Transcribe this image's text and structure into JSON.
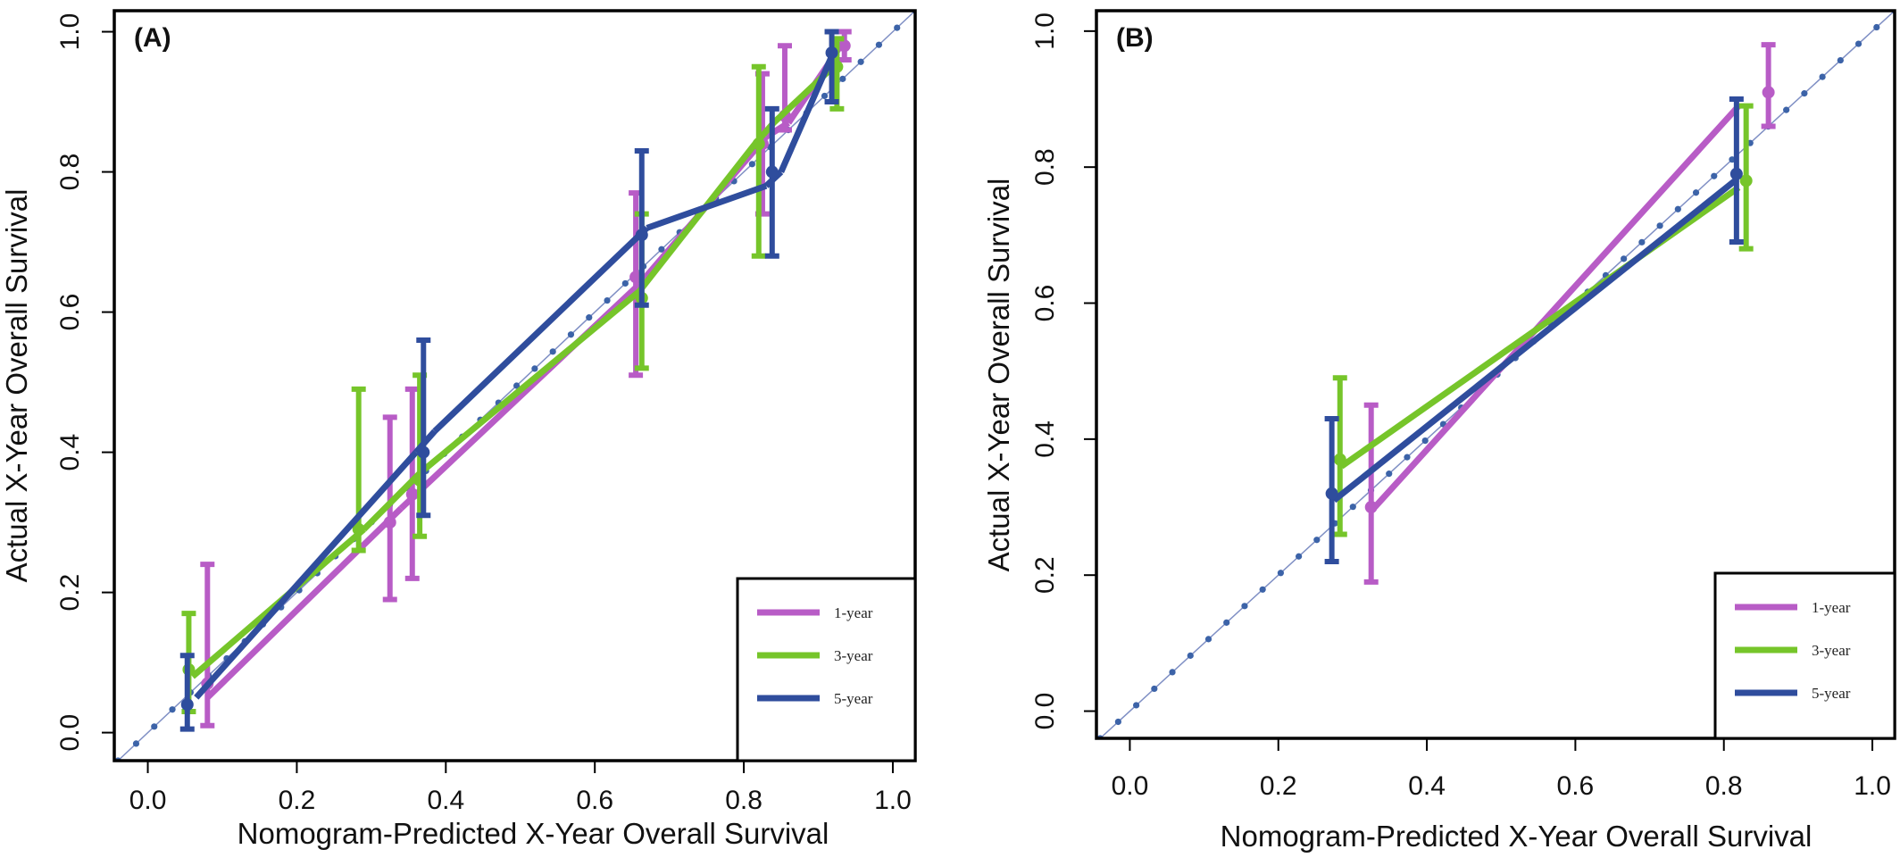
{
  "chart_data": [
    {
      "type": "line",
      "panel_label": "(A)",
      "xlabel": "Nomogram-Predicted X-Year Overall Survival",
      "ylabel": "Actual X-Year Overall Survival",
      "xlim": [
        -0.045,
        1.03
      ],
      "ylim": [
        -0.04,
        1.03
      ],
      "xticks": [
        "0.0",
        "0.2",
        "0.4",
        "0.6",
        "0.8",
        "1.0"
      ],
      "yticks": [
        "0.0",
        "0.2",
        "0.4",
        "0.6",
        "0.8",
        "1.0"
      ],
      "legend_position": "bottom-right",
      "reference_line": true,
      "series": [
        {
          "name": "1-year",
          "color": "#b85cc6",
          "line": [
            [
              0.08,
              0.05
            ],
            [
              0.34,
              0.32
            ],
            [
              0.36,
              0.34
            ],
            [
              0.66,
              0.64
            ],
            [
              0.83,
              0.85
            ],
            [
              0.86,
              0.87
            ],
            [
              0.93,
              0.98
            ]
          ],
          "points": [
            {
              "x": 0.08,
              "y": 0.07,
              "lo": 0.01,
              "hi": 0.24
            },
            {
              "x": 0.325,
              "y": 0.3,
              "lo": 0.19,
              "hi": 0.45
            },
            {
              "x": 0.355,
              "y": 0.34,
              "lo": 0.22,
              "hi": 0.49
            },
            {
              "x": 0.655,
              "y": 0.65,
              "lo": 0.51,
              "hi": 0.77
            },
            {
              "x": 0.825,
              "y": 0.84,
              "lo": 0.74,
              "hi": 0.94
            },
            {
              "x": 0.855,
              "y": 0.88,
              "lo": 0.86,
              "hi": 0.98
            },
            {
              "x": 0.935,
              "y": 0.98,
              "lo": 0.96,
              "hi": 1.0
            }
          ]
        },
        {
          "name": "3-year",
          "color": "#76c52a",
          "line": [
            [
              0.06,
              0.08
            ],
            [
              0.29,
              0.29
            ],
            [
              0.365,
              0.37
            ],
            [
              0.66,
              0.63
            ],
            [
              0.815,
              0.84
            ],
            [
              0.84,
              0.87
            ],
            [
              0.92,
              0.95
            ]
          ],
          "points": [
            {
              "x": 0.055,
              "y": 0.09,
              "lo": 0.03,
              "hi": 0.17
            },
            {
              "x": 0.283,
              "y": 0.29,
              "lo": 0.26,
              "hi": 0.49
            },
            {
              "x": 0.365,
              "y": 0.36,
              "lo": 0.28,
              "hi": 0.51
            },
            {
              "x": 0.663,
              "y": 0.62,
              "lo": 0.52,
              "hi": 0.74
            },
            {
              "x": 0.82,
              "y": 0.84,
              "lo": 0.68,
              "hi": 0.95
            },
            {
              "x": 0.925,
              "y": 0.95,
              "lo": 0.89,
              "hi": 0.99
            }
          ]
        },
        {
          "name": "5-year",
          "color": "#2f4d9d",
          "line": [
            [
              0.065,
              0.05
            ],
            [
              0.36,
              0.4
            ],
            [
              0.385,
              0.43
            ],
            [
              0.67,
              0.72
            ],
            [
              0.83,
              0.78
            ],
            [
              0.85,
              0.8
            ],
            [
              0.92,
              0.97
            ]
          ],
          "points": [
            {
              "x": 0.053,
              "y": 0.04,
              "lo": 0.005,
              "hi": 0.11
            },
            {
              "x": 0.37,
              "y": 0.4,
              "lo": 0.31,
              "hi": 0.56
            },
            {
              "x": 0.663,
              "y": 0.71,
              "lo": 0.61,
              "hi": 0.83
            },
            {
              "x": 0.838,
              "y": 0.8,
              "lo": 0.68,
              "hi": 0.89
            },
            {
              "x": 0.918,
              "y": 0.97,
              "lo": 0.9,
              "hi": 1.0
            }
          ]
        }
      ]
    },
    {
      "type": "line",
      "panel_label": "(B)",
      "xlabel": "Nomogram-Predicted X-Year Overall Survival",
      "ylabel": "Actual X-Year Overall Survival",
      "xlim": [
        -0.045,
        1.03
      ],
      "ylim": [
        -0.04,
        1.03
      ],
      "xticks": [
        "0.0",
        "0.2",
        "0.4",
        "0.6",
        "0.8",
        "1.0"
      ],
      "yticks": [
        "0.0",
        "0.2",
        "0.4",
        "0.6",
        "0.8",
        "1.0"
      ],
      "legend_position": "bottom-right",
      "reference_line": true,
      "series": [
        {
          "name": "1-year",
          "color": "#b85cc6",
          "line": [
            [
              0.33,
              0.3
            ],
            [
              0.82,
              0.89
            ]
          ],
          "points": [
            {
              "x": 0.325,
              "y": 0.3,
              "lo": 0.19,
              "hi": 0.45
            },
            {
              "x": 0.86,
              "y": 0.91,
              "lo": 0.86,
              "hi": 0.98
            }
          ]
        },
        {
          "name": "3-year",
          "color": "#76c52a",
          "line": [
            [
              0.285,
              0.36
            ],
            [
              0.82,
              0.77
            ]
          ],
          "points": [
            {
              "x": 0.283,
              "y": 0.37,
              "lo": 0.26,
              "hi": 0.49
            },
            {
              "x": 0.83,
              "y": 0.78,
              "lo": 0.68,
              "hi": 0.89
            }
          ]
        },
        {
          "name": "5-year",
          "color": "#2f4d9d",
          "line": [
            [
              0.275,
              0.31
            ],
            [
              0.815,
              0.78
            ]
          ],
          "points": [
            {
              "x": 0.272,
              "y": 0.32,
              "lo": 0.22,
              "hi": 0.43
            },
            {
              "x": 0.817,
              "y": 0.79,
              "lo": 0.69,
              "hi": 0.9
            }
          ]
        }
      ]
    }
  ]
}
